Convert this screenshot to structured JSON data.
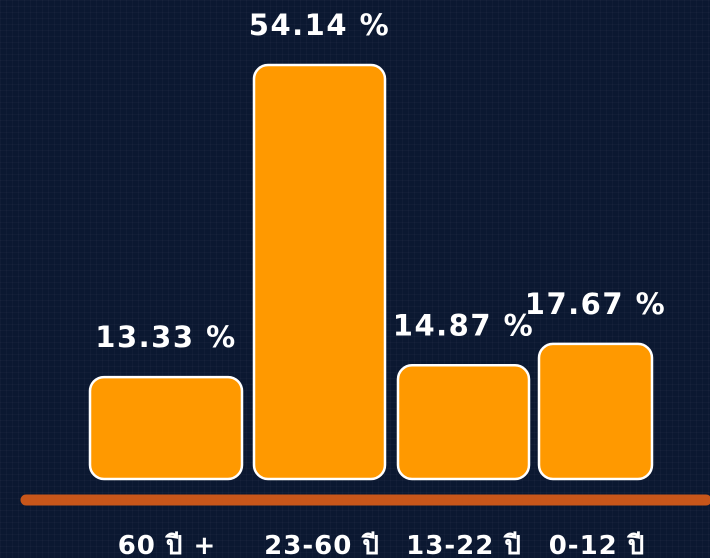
{
  "chart_data": {
    "type": "bar",
    "categories": [
      "60 ปี +",
      "23-60 ปี",
      "13-22 ปี",
      "0-12 ปี"
    ],
    "values": [
      13.33,
      54.14,
      14.87,
      17.67
    ],
    "value_labels": [
      "13.33 %",
      "54.14 %",
      "14.87 %",
      "17.67 %"
    ],
    "unit": "%",
    "ylim": [
      0,
      54.14
    ],
    "grid": false,
    "legend": "none"
  },
  "colors": {
    "bar_fill": "#ff9900",
    "bar_stroke": "#ffffff",
    "baseline": "#c8561a",
    "background": "#0b1831"
  }
}
